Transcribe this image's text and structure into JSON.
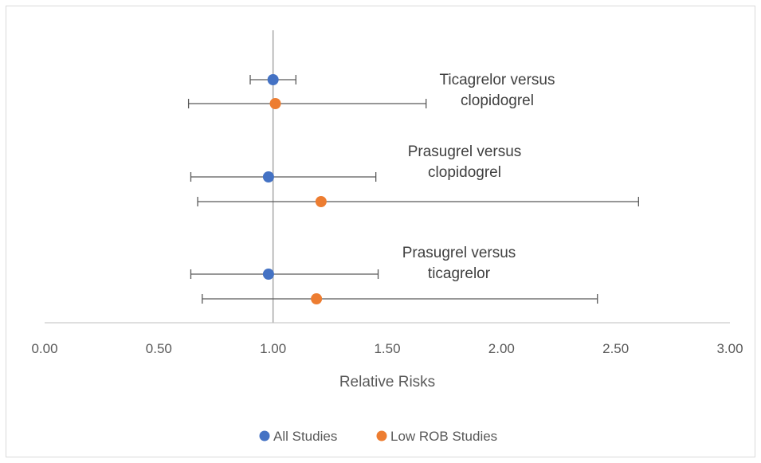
{
  "chart_data": {
    "type": "scatter",
    "xlabel": "Relative Risks",
    "xlim": [
      0,
      3
    ],
    "x_ticks": [
      "0.00",
      "0.50",
      "1.00",
      "1.50",
      "2.00",
      "2.50",
      "3.00"
    ],
    "reference_line_x": 1.0,
    "grid": false,
    "legend_position": "bottom",
    "series": [
      {
        "name": "All Studies",
        "color": "#4472c4",
        "points": [
          {
            "group": "Ticagrelor versus clopidogrel",
            "rr": 1.0,
            "lo": 0.9,
            "hi": 1.1
          },
          {
            "group": "Prasugrel versus clopidogrel",
            "rr": 0.98,
            "lo": 0.64,
            "hi": 1.45
          },
          {
            "group": "Prasugrel versus ticagrelor",
            "rr": 0.98,
            "lo": 0.64,
            "hi": 1.46
          }
        ]
      },
      {
        "name": "Low ROB Studies",
        "color": "#ed7d31",
        "points": [
          {
            "group": "Ticagrelor versus clopidogrel",
            "rr": 1.01,
            "lo": 0.63,
            "hi": 1.67
          },
          {
            "group": "Prasugrel versus clopidogrel",
            "rr": 1.21,
            "lo": 0.67,
            "hi": 2.6
          },
          {
            "group": "Prasugrel versus ticagrelor",
            "rr": 1.19,
            "lo": 0.69,
            "hi": 2.42
          }
        ]
      }
    ],
    "annotations": [
      {
        "lines": [
          "Ticagrelor versus",
          "clopidogrel"
        ]
      },
      {
        "lines": [
          "Prasugrel versus",
          "clopidogrel"
        ]
      },
      {
        "lines": [
          "Prasugrel versus",
          "ticagrelor"
        ]
      }
    ]
  }
}
